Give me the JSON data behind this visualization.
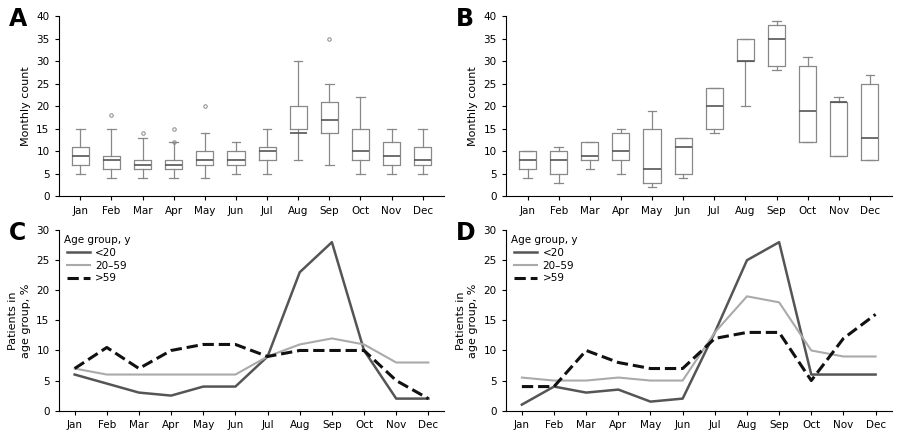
{
  "months": [
    "Jan",
    "Feb",
    "Mar",
    "Apr",
    "May",
    "Jun",
    "Jul",
    "Aug",
    "Sep",
    "Oct",
    "Nov",
    "Dec"
  ],
  "panel_A": {
    "label": "A",
    "ylabel": "Monthly count",
    "ylim": [
      0,
      40
    ],
    "yticks": [
      0,
      5,
      10,
      15,
      20,
      25,
      30,
      35,
      40
    ],
    "boxes": [
      {
        "q1": 7,
        "median": 9,
        "q3": 11,
        "whislo": 5,
        "whishi": 15,
        "fliers": []
      },
      {
        "q1": 6,
        "median": 8,
        "q3": 9,
        "whislo": 4,
        "whishi": 15,
        "fliers": [
          18
        ]
      },
      {
        "q1": 6,
        "median": 7,
        "q3": 8,
        "whislo": 4,
        "whishi": 13,
        "fliers": [
          14
        ]
      },
      {
        "q1": 6,
        "median": 7,
        "q3": 8,
        "whislo": 4,
        "whishi": 12,
        "fliers": [
          12,
          15
        ]
      },
      {
        "q1": 7,
        "median": 8,
        "q3": 10,
        "whislo": 4,
        "whishi": 14,
        "fliers": [
          20
        ]
      },
      {
        "q1": 7,
        "median": 8,
        "q3": 10,
        "whislo": 5,
        "whishi": 12,
        "fliers": []
      },
      {
        "q1": 8,
        "median": 10,
        "q3": 11,
        "whislo": 5,
        "whishi": 15,
        "fliers": []
      },
      {
        "q1": 15,
        "median": 14,
        "q3": 20,
        "whislo": 8,
        "whishi": 30,
        "fliers": []
      },
      {
        "q1": 14,
        "median": 17,
        "q3": 21,
        "whislo": 7,
        "whishi": 25,
        "fliers": [
          35
        ]
      },
      {
        "q1": 8,
        "median": 10,
        "q3": 15,
        "whislo": 5,
        "whishi": 22,
        "fliers": []
      },
      {
        "q1": 7,
        "median": 9,
        "q3": 12,
        "whislo": 5,
        "whishi": 15,
        "fliers": []
      },
      {
        "q1": 7,
        "median": 8,
        "q3": 11,
        "whislo": 5,
        "whishi": 15,
        "fliers": []
      }
    ]
  },
  "panel_B": {
    "label": "B",
    "ylabel": "Monthly count",
    "ylim": [
      0,
      40
    ],
    "yticks": [
      0,
      5,
      10,
      15,
      20,
      25,
      30,
      35,
      40
    ],
    "boxes": [
      {
        "q1": 6,
        "median": 8,
        "q3": 10,
        "whislo": 4,
        "whishi": 10,
        "fliers": []
      },
      {
        "q1": 5,
        "median": 8,
        "q3": 10,
        "whislo": 3,
        "whishi": 11,
        "fliers": []
      },
      {
        "q1": 8,
        "median": 9,
        "q3": 12,
        "whislo": 6,
        "whishi": 12,
        "fliers": []
      },
      {
        "q1": 8,
        "median": 10,
        "q3": 14,
        "whislo": 5,
        "whishi": 15,
        "fliers": []
      },
      {
        "q1": 3,
        "median": 6,
        "q3": 15,
        "whislo": 2,
        "whishi": 19,
        "fliers": []
      },
      {
        "q1": 5,
        "median": 11,
        "q3": 13,
        "whislo": 4,
        "whishi": 13,
        "fliers": []
      },
      {
        "q1": 15,
        "median": 20,
        "q3": 24,
        "whislo": 14,
        "whishi": 24,
        "fliers": []
      },
      {
        "q1": 30,
        "median": 30,
        "q3": 35,
        "whislo": 20,
        "whishi": 35,
        "fliers": []
      },
      {
        "q1": 29,
        "median": 35,
        "q3": 38,
        "whislo": 28,
        "whishi": 39,
        "fliers": []
      },
      {
        "q1": 12,
        "median": 19,
        "q3": 29,
        "whislo": 12,
        "whishi": 31,
        "fliers": []
      },
      {
        "q1": 9,
        "median": 21,
        "q3": 21,
        "whislo": 9,
        "whishi": 22,
        "fliers": []
      },
      {
        "q1": 8,
        "median": 13,
        "q3": 25,
        "whislo": 8,
        "whishi": 27,
        "fliers": []
      }
    ]
  },
  "panel_C": {
    "label": "C",
    "ylabel": "Patients in\nage group, %",
    "ylim": [
      0,
      30
    ],
    "yticks": [
      0,
      5,
      10,
      15,
      20,
      25,
      30
    ],
    "line_lt20": [
      6,
      4.5,
      3,
      2.5,
      4,
      4,
      9,
      23,
      28,
      10,
      2,
      2
    ],
    "line_20to59": [
      7,
      6,
      6,
      6,
      6,
      6,
      9,
      11,
      12,
      11,
      8,
      8
    ],
    "line_gt59": [
      7,
      10.5,
      7,
      10,
      11,
      11,
      9,
      10,
      10,
      10,
      5,
      2
    ]
  },
  "panel_D": {
    "label": "D",
    "ylabel": "Patients in\nage group, %",
    "ylim": [
      0,
      30
    ],
    "yticks": [
      0,
      5,
      10,
      15,
      20,
      25,
      30
    ],
    "line_lt20": [
      1,
      4,
      3,
      3.5,
      1.5,
      2,
      13,
      25,
      28,
      6,
      6,
      6
    ],
    "line_20to59": [
      5.5,
      5,
      5,
      5.5,
      5,
      5,
      13,
      19,
      18,
      10,
      9,
      9
    ],
    "line_gt59": [
      4,
      4,
      10,
      8,
      7,
      7,
      12,
      13,
      13,
      5,
      12,
      16
    ]
  },
  "legend": {
    "title": "Age group, y",
    "labels": [
      "<20",
      "20–59",
      ">59"
    ],
    "colors": [
      "#555555",
      "#aaaaaa",
      "#111111"
    ],
    "styles": [
      "-",
      "-",
      "--"
    ],
    "linewidths": [
      1.8,
      1.5,
      2.2
    ]
  },
  "box_color": "#888888",
  "median_color": "#555555",
  "flier_color": "#888888"
}
